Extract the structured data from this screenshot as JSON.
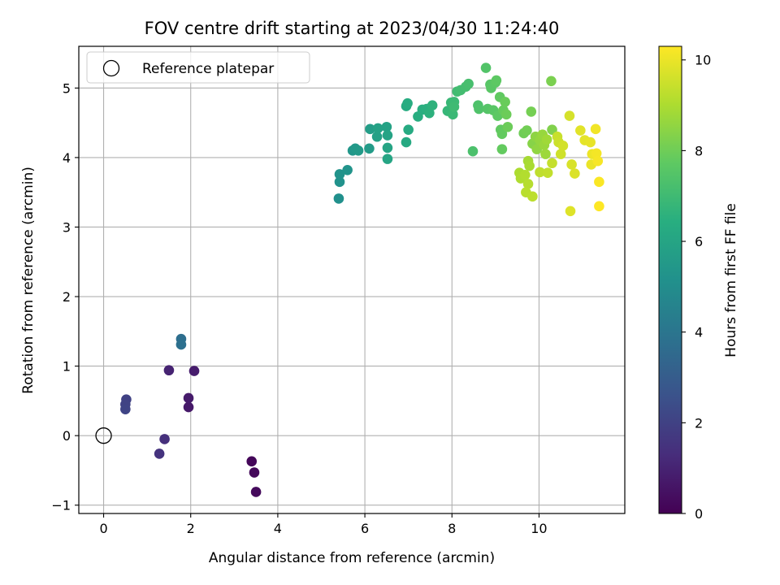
{
  "chart_data": {
    "type": "scatter",
    "title": "FOV centre drift starting at 2023/04/30 11:24:40",
    "xlabel": "Angular distance from reference (arcmin)",
    "ylabel": "Rotation from reference (arcmin)",
    "xlim": [
      -0.57,
      11.97
    ],
    "ylim": [
      -1.12,
      5.6
    ],
    "xticks": [
      "0",
      "2",
      "4",
      "6",
      "8",
      "10"
    ],
    "yticks": [
      "−1",
      "0",
      "1",
      "2",
      "3",
      "4",
      "5"
    ],
    "grid": true,
    "legend": {
      "position": "upper-left",
      "label": "Reference platepar"
    },
    "reference_point": {
      "x": 0,
      "y": 0
    },
    "colormap": "viridis",
    "colorbar": {
      "label": "Hours from first FF file",
      "range": [
        0,
        10.3
      ],
      "ticks": [
        "0",
        "2",
        "4",
        "6",
        "8",
        "10"
      ]
    },
    "points": [
      {
        "x": 3.4,
        "y": -0.37,
        "c": 0.15
      },
      {
        "x": 3.46,
        "y": -0.53,
        "c": 0.2
      },
      {
        "x": 3.5,
        "y": -0.81,
        "c": 0.25
      },
      {
        "x": 1.95,
        "y": 0.41,
        "c": 0.7
      },
      {
        "x": 1.95,
        "y": 0.54,
        "c": 0.75
      },
      {
        "x": 2.08,
        "y": 0.93,
        "c": 0.8
      },
      {
        "x": 1.5,
        "y": 0.94,
        "c": 1.0
      },
      {
        "x": 1.4,
        "y": -0.05,
        "c": 1.4
      },
      {
        "x": 1.28,
        "y": -0.26,
        "c": 1.5
      },
      {
        "x": 0.52,
        "y": 0.52,
        "c": 2.0
      },
      {
        "x": 0.5,
        "y": 0.45,
        "c": 2.05
      },
      {
        "x": 0.5,
        "y": 0.38,
        "c": 2.1
      },
      {
        "x": 1.78,
        "y": 1.39,
        "c": 3.7
      },
      {
        "x": 1.78,
        "y": 1.31,
        "c": 3.8
      },
      {
        "x": 5.4,
        "y": 3.41,
        "c": 5.1
      },
      {
        "x": 5.42,
        "y": 3.65,
        "c": 5.2
      },
      {
        "x": 5.42,
        "y": 3.76,
        "c": 5.25
      },
      {
        "x": 5.6,
        "y": 3.82,
        "c": 5.3
      },
      {
        "x": 5.72,
        "y": 4.1,
        "c": 5.4
      },
      {
        "x": 5.78,
        "y": 4.13,
        "c": 5.5
      },
      {
        "x": 5.85,
        "y": 4.1,
        "c": 5.55
      },
      {
        "x": 6.1,
        "y": 4.13,
        "c": 5.6
      },
      {
        "x": 6.12,
        "y": 4.41,
        "c": 5.7
      },
      {
        "x": 6.28,
        "y": 4.3,
        "c": 5.8
      },
      {
        "x": 6.3,
        "y": 4.42,
        "c": 5.85
      },
      {
        "x": 6.5,
        "y": 4.44,
        "c": 5.9
      },
      {
        "x": 6.52,
        "y": 4.32,
        "c": 5.95
      },
      {
        "x": 6.52,
        "y": 4.14,
        "c": 6.0
      },
      {
        "x": 6.52,
        "y": 3.98,
        "c": 6.05
      },
      {
        "x": 6.95,
        "y": 4.22,
        "c": 6.2
      },
      {
        "x": 7.0,
        "y": 4.4,
        "c": 6.25
      },
      {
        "x": 6.95,
        "y": 4.74,
        "c": 6.3
      },
      {
        "x": 6.98,
        "y": 4.78,
        "c": 6.35
      },
      {
        "x": 7.22,
        "y": 4.59,
        "c": 6.4
      },
      {
        "x": 7.32,
        "y": 4.69,
        "c": 6.45
      },
      {
        "x": 7.42,
        "y": 4.7,
        "c": 6.5
      },
      {
        "x": 7.48,
        "y": 4.64,
        "c": 6.55
      },
      {
        "x": 7.55,
        "y": 4.75,
        "c": 6.6
      },
      {
        "x": 7.9,
        "y": 4.67,
        "c": 6.8
      },
      {
        "x": 7.98,
        "y": 4.79,
        "c": 6.85
      },
      {
        "x": 8.02,
        "y": 4.62,
        "c": 6.9
      },
      {
        "x": 8.05,
        "y": 4.8,
        "c": 6.95
      },
      {
        "x": 8.05,
        "y": 4.73,
        "c": 7.0
      },
      {
        "x": 8.12,
        "y": 4.95,
        "c": 7.05
      },
      {
        "x": 8.2,
        "y": 4.97,
        "c": 7.1
      },
      {
        "x": 8.32,
        "y": 5.02,
        "c": 7.15
      },
      {
        "x": 8.38,
        "y": 5.06,
        "c": 7.2
      },
      {
        "x": 8.48,
        "y": 4.09,
        "c": 7.3
      },
      {
        "x": 8.6,
        "y": 4.75,
        "c": 7.35
      },
      {
        "x": 8.62,
        "y": 4.7,
        "c": 7.4
      },
      {
        "x": 8.78,
        "y": 5.29,
        "c": 7.45
      },
      {
        "x": 8.82,
        "y": 4.7,
        "c": 7.5
      },
      {
        "x": 8.88,
        "y": 5.05,
        "c": 7.55
      },
      {
        "x": 8.9,
        "y": 5.0,
        "c": 7.6
      },
      {
        "x": 8.95,
        "y": 4.68,
        "c": 7.6
      },
      {
        "x": 9.0,
        "y": 5.08,
        "c": 7.65
      },
      {
        "x": 9.02,
        "y": 5.11,
        "c": 7.7
      },
      {
        "x": 9.05,
        "y": 4.6,
        "c": 7.7
      },
      {
        "x": 9.1,
        "y": 4.87,
        "c": 7.75
      },
      {
        "x": 9.12,
        "y": 4.4,
        "c": 7.75
      },
      {
        "x": 9.15,
        "y": 4.34,
        "c": 7.8
      },
      {
        "x": 9.15,
        "y": 4.12,
        "c": 7.8
      },
      {
        "x": 9.18,
        "y": 4.68,
        "c": 7.85
      },
      {
        "x": 9.22,
        "y": 4.8,
        "c": 7.9
      },
      {
        "x": 9.25,
        "y": 4.62,
        "c": 7.95
      },
      {
        "x": 9.28,
        "y": 4.44,
        "c": 7.95
      },
      {
        "x": 9.65,
        "y": 4.35,
        "c": 8.0
      },
      {
        "x": 9.72,
        "y": 4.39,
        "c": 8.05
      },
      {
        "x": 9.82,
        "y": 4.66,
        "c": 8.1
      },
      {
        "x": 10.28,
        "y": 5.1,
        "c": 8.2
      },
      {
        "x": 10.3,
        "y": 4.4,
        "c": 8.3
      },
      {
        "x": 9.85,
        "y": 4.2,
        "c": 8.4
      },
      {
        "x": 9.92,
        "y": 4.3,
        "c": 8.5
      },
      {
        "x": 9.95,
        "y": 4.12,
        "c": 8.55
      },
      {
        "x": 10.02,
        "y": 4.25,
        "c": 8.6
      },
      {
        "x": 10.08,
        "y": 4.33,
        "c": 8.65
      },
      {
        "x": 10.12,
        "y": 4.18,
        "c": 8.7
      },
      {
        "x": 10.15,
        "y": 4.05,
        "c": 8.75
      },
      {
        "x": 10.18,
        "y": 4.26,
        "c": 8.8
      },
      {
        "x": 9.75,
        "y": 3.95,
        "c": 8.9
      },
      {
        "x": 9.78,
        "y": 3.88,
        "c": 8.95
      },
      {
        "x": 9.55,
        "y": 3.78,
        "c": 9.0
      },
      {
        "x": 9.58,
        "y": 3.7,
        "c": 9.05
      },
      {
        "x": 9.68,
        "y": 3.75,
        "c": 9.1
      },
      {
        "x": 9.75,
        "y": 3.62,
        "c": 9.15
      },
      {
        "x": 9.7,
        "y": 3.5,
        "c": 9.2
      },
      {
        "x": 9.85,
        "y": 3.44,
        "c": 9.25
      },
      {
        "x": 10.02,
        "y": 3.79,
        "c": 9.3
      },
      {
        "x": 10.2,
        "y": 3.78,
        "c": 9.35
      },
      {
        "x": 10.3,
        "y": 3.92,
        "c": 9.4
      },
      {
        "x": 10.42,
        "y": 4.3,
        "c": 9.45
      },
      {
        "x": 10.45,
        "y": 4.22,
        "c": 9.5
      },
      {
        "x": 10.5,
        "y": 4.05,
        "c": 9.55
      },
      {
        "x": 10.55,
        "y": 4.17,
        "c": 9.6
      },
      {
        "x": 10.7,
        "y": 4.6,
        "c": 9.65
      },
      {
        "x": 10.75,
        "y": 3.9,
        "c": 9.7
      },
      {
        "x": 10.82,
        "y": 3.77,
        "c": 9.75
      },
      {
        "x": 10.72,
        "y": 3.23,
        "c": 9.8
      },
      {
        "x": 10.95,
        "y": 4.39,
        "c": 9.85
      },
      {
        "x": 11.05,
        "y": 4.25,
        "c": 9.9
      },
      {
        "x": 11.18,
        "y": 4.22,
        "c": 9.95
      },
      {
        "x": 11.2,
        "y": 3.9,
        "c": 10.0
      },
      {
        "x": 11.22,
        "y": 4.05,
        "c": 10.05
      },
      {
        "x": 11.3,
        "y": 4.41,
        "c": 10.1
      },
      {
        "x": 11.32,
        "y": 4.06,
        "c": 10.15
      },
      {
        "x": 11.35,
        "y": 3.95,
        "c": 10.2
      },
      {
        "x": 11.38,
        "y": 3.65,
        "c": 10.25
      },
      {
        "x": 11.38,
        "y": 3.3,
        "c": 10.3
      }
    ]
  }
}
